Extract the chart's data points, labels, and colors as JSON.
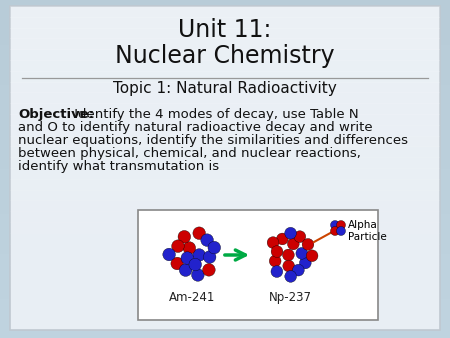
{
  "title_line1": "Unit 11:",
  "title_line2": "Nuclear Chemistry",
  "subtitle": "Topic 1: Natural Radioactivity",
  "objective_bold": "Objective:",
  "objective_rest_line1": " Identify the 4 modes of decay, use Table N",
  "objective_line2": "and O to identify natural radioactive decay and write",
  "objective_line3": "nuclear equations, identify the similarities and differences",
  "objective_line4": "between physical, chemical, and nuclear reactions,",
  "objective_line5": "identify what transmutation is",
  "am241_label": "Am-241",
  "np237_label": "Np-237",
  "alpha_label": "Alpha\nParticle",
  "bg_outer": "#b8ccd8",
  "bg_slide": "#e8eef4",
  "divider_color": "#999999",
  "text_color": "#111111",
  "image_box_color": "#ffffff",
  "image_box_border": "#888888",
  "title_fontsize": 17,
  "subtitle_fontsize": 11,
  "body_fontsize": 9.5,
  "nucleus_red": "#cc0000",
  "nucleus_blue": "#2222cc",
  "arrow_color": "#00aa44",
  "alpha_line_color": "#cc4400"
}
